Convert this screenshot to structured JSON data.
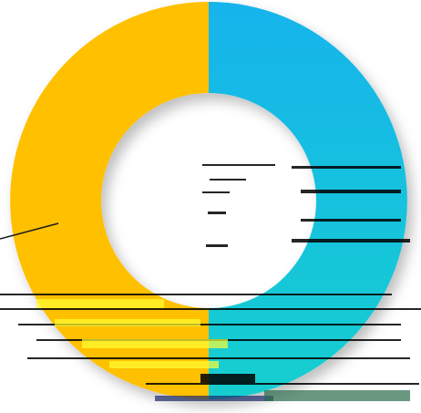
{
  "chart_data": {
    "type": "pie",
    "variant": "donut",
    "categories": [
      "",
      ""
    ],
    "values": [
      50,
      50
    ],
    "colors": [
      "#12b4ec",
      "#ffc000"
    ],
    "gradient_end_color": "#17cfcf",
    "title": "",
    "legend": "none",
    "leader_line_color": "#1a1a1a",
    "artifact_colors": [
      "#000000",
      "#ffff33",
      "#1a2a6b",
      "#2a6b4a"
    ]
  }
}
